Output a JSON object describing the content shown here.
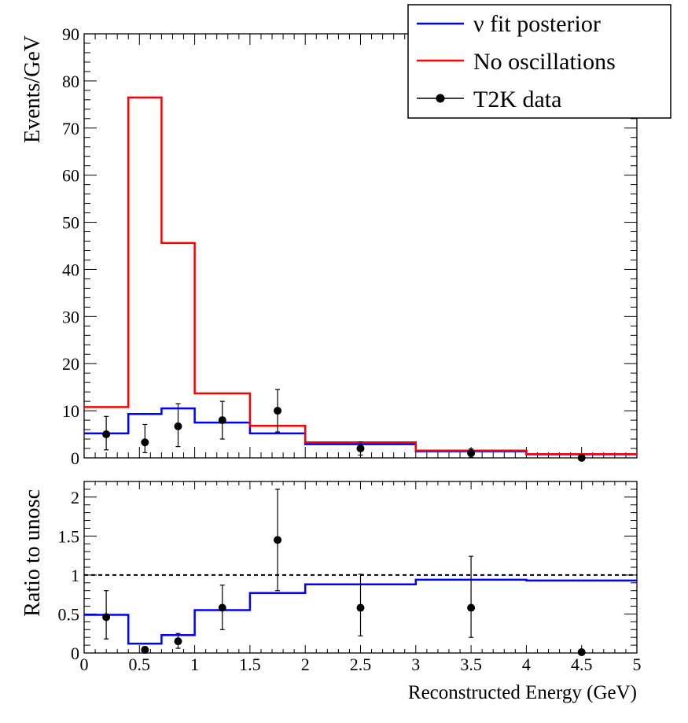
{
  "chart_data": [
    {
      "type": "line",
      "panel": "top",
      "ylabel": "Events/GeV",
      "xlabel": "",
      "xlim": [
        0,
        5
      ],
      "ylim": [
        0,
        90
      ],
      "yticks": [
        0,
        10,
        20,
        30,
        40,
        50,
        60,
        70,
        80,
        90
      ],
      "bin_edges": [
        0,
        0.4,
        0.7,
        1.0,
        1.5,
        2.0,
        3.0,
        4.0,
        5.0
      ],
      "series": [
        {
          "name": "ν fit posterior",
          "color": "#0000ff",
          "values": [
            5.2,
            9.3,
            10.5,
            7.5,
            5.2,
            2.9,
            1.4,
            0.75
          ]
        },
        {
          "name": "No oscillations",
          "color": "#ff0000",
          "values": [
            10.8,
            76.5,
            45.6,
            13.7,
            6.8,
            3.3,
            1.55,
            0.8
          ]
        }
      ],
      "data_points": {
        "name": "T2K data",
        "color": "#000000",
        "x": [
          0.2,
          0.55,
          0.85,
          1.25,
          1.75,
          2.5,
          3.5,
          4.5
        ],
        "y": [
          5.0,
          3.3,
          6.7,
          8.0,
          10.0,
          2.0,
          1.0,
          0.0
        ],
        "err_low": [
          3.3,
          2.2,
          4.3,
          4.0,
          4.5,
          1.4,
          0.9,
          0.0
        ],
        "err_high": [
          3.8,
          3.8,
          4.8,
          4.0,
          4.5,
          1.4,
          0.9,
          0.0
        ]
      },
      "legend": {
        "position": "top-right",
        "entries": [
          {
            "label": "ν fit posterior",
            "symbol": "line",
            "color": "#0000ff"
          },
          {
            "label": "No oscillations",
            "symbol": "line",
            "color": "#ff0000"
          },
          {
            "label": "T2K data",
            "symbol": "marker",
            "color": "#000000"
          }
        ]
      }
    },
    {
      "type": "line",
      "panel": "bottom",
      "ylabel": "Ratio to unosc",
      "xlabel": "Reconstructed Energy (GeV)",
      "xlim": [
        0,
        5
      ],
      "ylim": [
        0,
        2.2
      ],
      "yticks": [
        0,
        0.5,
        1,
        1.5,
        2
      ],
      "ytick_labels": [
        "0",
        "0.5",
        "1",
        "1.5",
        "2"
      ],
      "xticks": [
        0,
        0.5,
        1,
        1.5,
        2,
        2.5,
        3,
        3.5,
        4,
        4.5,
        5
      ],
      "xtick_labels": [
        "0",
        "0.5",
        "1",
        "1.5",
        "2",
        "2.5",
        "3",
        "3.5",
        "4",
        "4.5",
        "5"
      ],
      "reference_line": {
        "y": 1,
        "style": "dashed",
        "color": "#000000"
      },
      "bin_edges": [
        0,
        0.4,
        0.7,
        1.0,
        1.5,
        2.0,
        3.0,
        4.0,
        5.0
      ],
      "series": [
        {
          "name": "ν fit posterior",
          "color": "#0000ff",
          "values": [
            0.49,
            0.12,
            0.23,
            0.55,
            0.77,
            0.88,
            0.94,
            0.93
          ]
        }
      ],
      "data_points": {
        "name": "T2K data",
        "color": "#000000",
        "x": [
          0.2,
          0.55,
          0.85,
          1.25,
          1.75,
          2.5,
          3.5,
          4.5
        ],
        "y": [
          0.46,
          0.04,
          0.15,
          0.58,
          1.45,
          0.58,
          0.58,
          0.01
        ],
        "err_low": [
          0.28,
          0.04,
          0.09,
          0.28,
          0.65,
          0.36,
          0.38,
          0.0
        ],
        "err_high": [
          0.34,
          0.04,
          0.1,
          0.29,
          0.65,
          0.43,
          0.66,
          0.0
        ]
      }
    }
  ]
}
